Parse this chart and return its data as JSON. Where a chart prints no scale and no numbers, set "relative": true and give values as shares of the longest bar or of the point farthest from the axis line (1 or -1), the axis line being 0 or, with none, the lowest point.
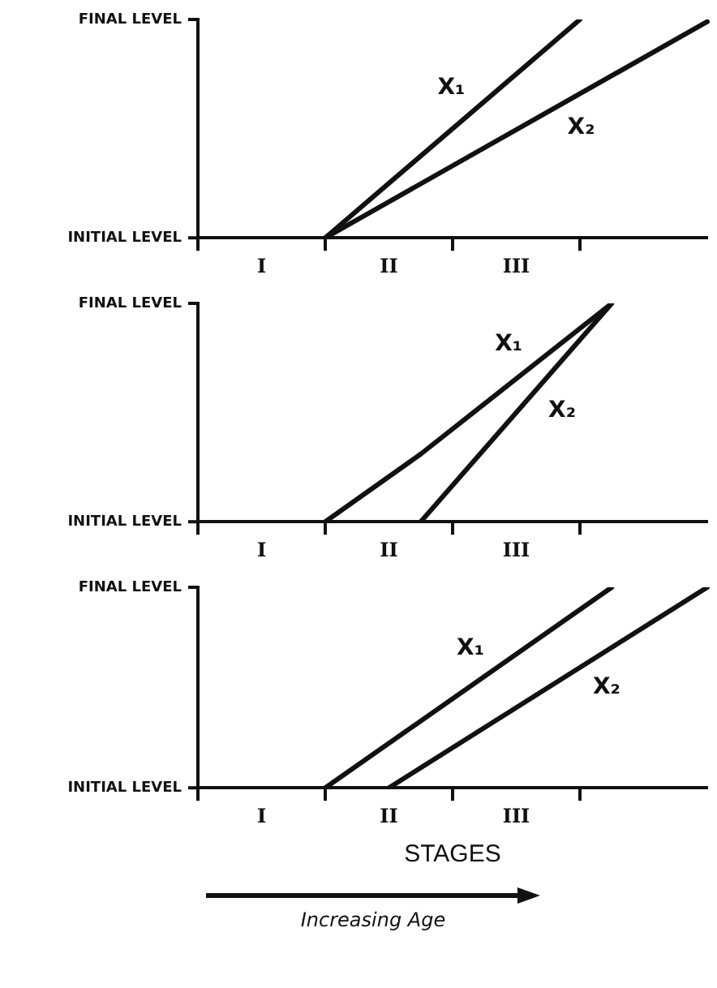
{
  "chart_data": [
    {
      "type": "line",
      "relative": true,
      "categories": [
        null,
        null,
        "I",
        null,
        null,
        null,
        "II",
        null,
        null,
        null,
        "III",
        null,
        null,
        null,
        null,
        null,
        null
      ],
      "annotations": [
        "INITIAL LEVEL",
        "FINAL LEVEL"
      ],
      "series": [
        {
          "name": "X₁",
          "color": "#111111",
          "values": [
            null,
            null,
            null,
            null,
            0,
            null,
            null,
            null,
            null,
            null,
            null,
            null,
            1,
            null,
            null,
            null,
            null
          ]
        },
        {
          "name": "X₂",
          "color": "#111111",
          "values": [
            null,
            null,
            null,
            null,
            0,
            null,
            null,
            null,
            null,
            null,
            null,
            null,
            null,
            null,
            null,
            null,
            0.99
          ]
        }
      ]
    },
    {
      "type": "line",
      "relative": true,
      "categories": [
        null,
        null,
        "I",
        null,
        null,
        null,
        "II",
        null,
        null,
        null,
        "III",
        null,
        null,
        null,
        null,
        null,
        null
      ],
      "annotations": [
        "INITIAL LEVEL",
        "FINAL LEVEL"
      ],
      "series": [
        {
          "name": "X₁",
          "color": "#111111",
          "values": [
            null,
            null,
            null,
            null,
            0,
            null,
            null,
            0.31,
            null,
            null,
            null,
            null,
            null,
            1,
            null,
            null,
            null
          ]
        },
        {
          "name": "X₂",
          "color": "#111111",
          "values": [
            null,
            null,
            null,
            null,
            null,
            null,
            null,
            0,
            null,
            null,
            null,
            null,
            null,
            1,
            null,
            null,
            null
          ]
        }
      ]
    },
    {
      "type": "line",
      "relative": true,
      "xlabel": "STAGES",
      "categories": [
        null,
        null,
        "I",
        null,
        null,
        null,
        "II",
        null,
        null,
        null,
        "III",
        null,
        null,
        null,
        null,
        null,
        null
      ],
      "annotations": [
        "INITIAL LEVEL",
        "FINAL LEVEL",
        "Increasing Age"
      ],
      "series": [
        {
          "name": "X₁",
          "color": "#111111",
          "values": [
            null,
            null,
            null,
            null,
            0,
            null,
            null,
            null,
            null,
            null,
            null,
            null,
            null,
            1,
            null,
            null,
            null
          ]
        },
        {
          "name": "X₂",
          "color": "#111111",
          "values": [
            null,
            null,
            null,
            null,
            null,
            null,
            0,
            null,
            null,
            null,
            null,
            null,
            null,
            null,
            null,
            null,
            1
          ]
        }
      ]
    }
  ]
}
